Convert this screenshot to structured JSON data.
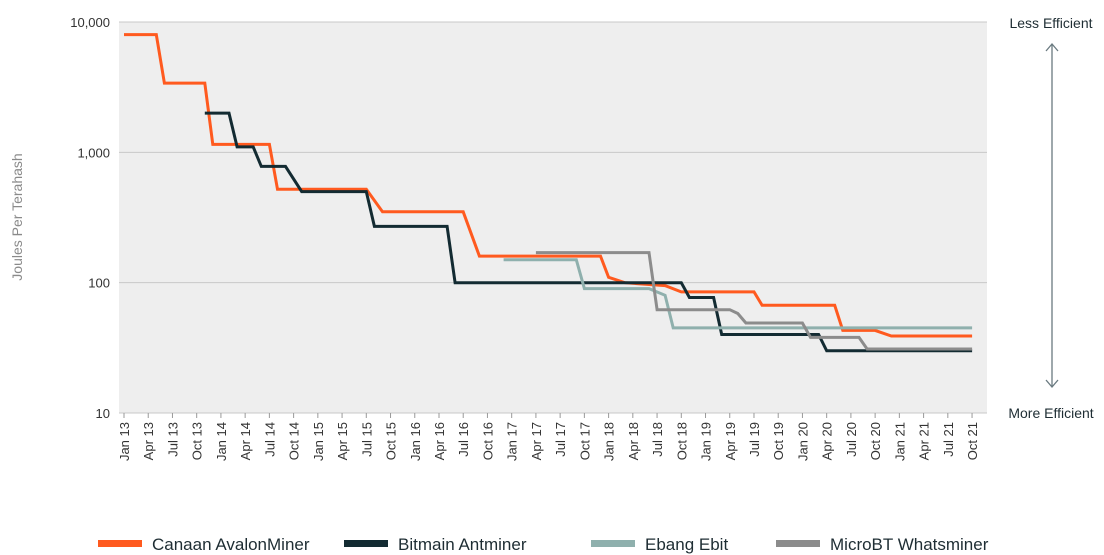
{
  "chart_data": {
    "type": "line",
    "ylabel": "Joules Per Terahash",
    "xlabel": "",
    "yscale": "log",
    "ylim": [
      10,
      10000
    ],
    "yticks": [
      "10",
      "100",
      "1,000",
      "10,000"
    ],
    "ytick_values": [
      10,
      100,
      1000,
      10000
    ],
    "grid": "horizontal",
    "legend_position": "bottom",
    "annotations": {
      "top": "Less Efficient",
      "bottom": "More Efficient"
    },
    "x_ticks": [
      "Jan 13",
      "Apr 13",
      "Jul 13",
      "Oct 13",
      "Jan 14",
      "Apr 14",
      "Jul 14",
      "Oct 14",
      "Jan 15",
      "Apr 15",
      "Jul 15",
      "Oct 15",
      "Jan 16",
      "Apr 16",
      "Jul 16",
      "Oct 16",
      "Jan 17",
      "Apr 17",
      "Jul 17",
      "Oct 17",
      "Jan 18",
      "Apr 18",
      "Jul 18",
      "Oct 18",
      "Jan 19",
      "Apr 19",
      "Jul 19",
      "Oct 19",
      "Jan 20",
      "Apr 20",
      "Jul 20",
      "Oct 20",
      "Jan 21",
      "Apr 21",
      "Jul 21",
      "Oct 21"
    ],
    "series": [
      {
        "name": "Canaan AvalonMiner",
        "color": "#ff5a1f",
        "points": [
          [
            "2013-01",
            8000
          ],
          [
            "2013-05",
            8000
          ],
          [
            "2013-06",
            3400
          ],
          [
            "2013-11",
            3400
          ],
          [
            "2013-12",
            1150
          ],
          [
            "2014-07",
            1150
          ],
          [
            "2014-08",
            520
          ],
          [
            "2015-07",
            520
          ],
          [
            "2015-09",
            350
          ],
          [
            "2016-07",
            350
          ],
          [
            "2016-09",
            160
          ],
          [
            "2017-12",
            160
          ],
          [
            "2018-01",
            110
          ],
          [
            "2018-03",
            100
          ],
          [
            "2018-08",
            95
          ],
          [
            "2018-10",
            85
          ],
          [
            "2019-07",
            85
          ],
          [
            "2019-08",
            67
          ],
          [
            "2020-05",
            67
          ],
          [
            "2020-06",
            43
          ],
          [
            "2020-10",
            43
          ],
          [
            "2020-12",
            39
          ],
          [
            "2021-10",
            39
          ]
        ]
      },
      {
        "name": "Bitmain Antminer",
        "color": "#132b32",
        "points": [
          [
            "2013-11",
            2000
          ],
          [
            "2014-02",
            2000
          ],
          [
            "2014-03",
            1100
          ],
          [
            "2014-05",
            1100
          ],
          [
            "2014-06",
            780
          ],
          [
            "2014-09",
            780
          ],
          [
            "2014-11",
            500
          ],
          [
            "2015-07",
            500
          ],
          [
            "2015-08",
            270
          ],
          [
            "2016-05",
            270
          ],
          [
            "2016-06",
            100
          ],
          [
            "2018-10",
            100
          ],
          [
            "2018-11",
            77
          ],
          [
            "2019-02",
            77
          ],
          [
            "2019-03",
            40
          ],
          [
            "2020-03",
            40
          ],
          [
            "2020-04",
            30
          ],
          [
            "2021-10",
            30
          ]
        ]
      },
      {
        "name": "Ebang Ebit",
        "color": "#8fb0ad",
        "points": [
          [
            "2016-12",
            150
          ],
          [
            "2017-09",
            150
          ],
          [
            "2017-10",
            90
          ],
          [
            "2018-06",
            90
          ],
          [
            "2018-08",
            80
          ],
          [
            "2018-09",
            45
          ],
          [
            "2021-10",
            45
          ]
        ]
      },
      {
        "name": "MicroBT Whatsminer",
        "color": "#8c8c8c",
        "points": [
          [
            "2017-04",
            170
          ],
          [
            "2018-06",
            170
          ],
          [
            "2018-07",
            62
          ],
          [
            "2019-04",
            62
          ],
          [
            "2019-05",
            58
          ],
          [
            "2019-06",
            49
          ],
          [
            "2020-01",
            49
          ],
          [
            "2020-02",
            38
          ],
          [
            "2020-08",
            38
          ],
          [
            "2020-09",
            31
          ],
          [
            "2021-10",
            31
          ]
        ]
      }
    ]
  }
}
